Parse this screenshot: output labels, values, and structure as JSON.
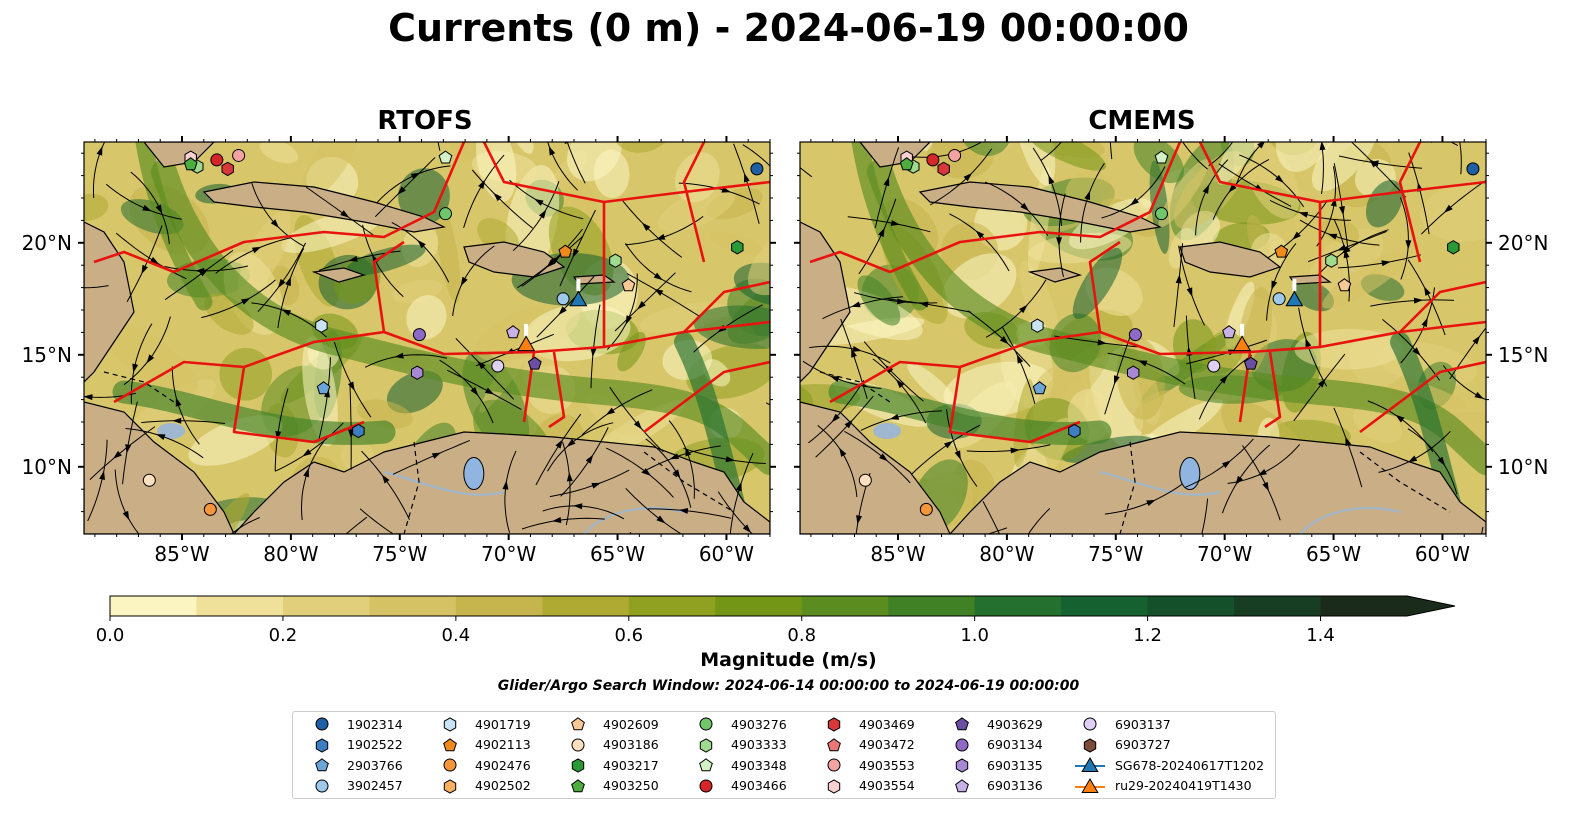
{
  "title": "Currents (0 m) - 2024-06-19 00:00:00",
  "panels": [
    {
      "title": "RTOFS"
    },
    {
      "title": "CMEMS"
    }
  ],
  "axes": {
    "lon_labels": [
      "85°W",
      "80°W",
      "75°W",
      "70°W",
      "65°W",
      "60°W"
    ],
    "lat_labels": [
      "20°N",
      "15°N",
      "10°N"
    ]
  },
  "colorbar": {
    "label": "Magnitude (m/s)",
    "ticks": [
      "0.0",
      "0.2",
      "0.4",
      "0.6",
      "0.8",
      "1.0",
      "1.2",
      "1.4"
    ],
    "bins": [
      0.0,
      0.1,
      0.2,
      0.3,
      0.4,
      0.5,
      0.6,
      0.7,
      0.8,
      0.9,
      1.0,
      1.1,
      1.2,
      1.3,
      1.4,
      1.5
    ],
    "colors": [
      "#fbf5c2",
      "#efe19a",
      "#e2cf7c",
      "#d5c265",
      "#c6b54c",
      "#aeaa32",
      "#90a020",
      "#749616",
      "#5b8c20",
      "#418126",
      "#24702f",
      "#15612f",
      "#14512a",
      "#173d23",
      "#1b2b1b"
    ],
    "extend": "max"
  },
  "search_window": "Glider/Argo Search Window: 2024-06-14 00:00:00 to 2024-06-19 00:00:00",
  "legend": [
    {
      "label": "1902314",
      "marker": "circle",
      "color": "#1f5fa3"
    },
    {
      "label": "1902522",
      "marker": "hexagon",
      "color": "#3d7ec0"
    },
    {
      "label": "2903766",
      "marker": "pentagon",
      "color": "#6ca6d9"
    },
    {
      "label": "3902457",
      "marker": "circle",
      "color": "#9ec9ea"
    },
    {
      "label": "4901719",
      "marker": "hexagon",
      "color": "#c9e3f5"
    },
    {
      "label": "4902113",
      "marker": "pentagon",
      "color": "#f08a1e"
    },
    {
      "label": "4902476",
      "marker": "circle",
      "color": "#f5963a"
    },
    {
      "label": "4902502",
      "marker": "hexagon",
      "color": "#f9b060"
    },
    {
      "label": "4902609",
      "marker": "pentagon",
      "color": "#f8c896"
    },
    {
      "label": "4903186",
      "marker": "circle",
      "color": "#fde0c0"
    },
    {
      "label": "4903217",
      "marker": "hexagon",
      "color": "#2a9a36"
    },
    {
      "label": "4903250",
      "marker": "pentagon",
      "color": "#4cae3c"
    },
    {
      "label": "4903276",
      "marker": "circle",
      "color": "#72c66a"
    },
    {
      "label": "4903333",
      "marker": "hexagon",
      "color": "#9edb8e"
    },
    {
      "label": "4903348",
      "marker": "pentagon",
      "color": "#d3f1c6"
    },
    {
      "label": "4903466",
      "marker": "circle",
      "color": "#d62728"
    },
    {
      "label": "4903469",
      "marker": "hexagon",
      "color": "#d8383a"
    },
    {
      "label": "4903472",
      "marker": "pentagon",
      "color": "#ea7777"
    },
    {
      "label": "4903553",
      "marker": "circle",
      "color": "#f4a3a3"
    },
    {
      "label": "4903554",
      "marker": "hexagon",
      "color": "#fbd0d0"
    },
    {
      "label": "4903629",
      "marker": "pentagon",
      "color": "#6a4fa3"
    },
    {
      "label": "6903134",
      "marker": "circle",
      "color": "#8f69c6"
    },
    {
      "label": "6903135",
      "marker": "hexagon",
      "color": "#a888d4"
    },
    {
      "label": "6903136",
      "marker": "pentagon",
      "color": "#c7b1e6"
    },
    {
      "label": "6903137",
      "marker": "circle",
      "color": "#ddd0f2"
    },
    {
      "label": "6903727",
      "marker": "hexagon",
      "color": "#7b4a3a"
    },
    {
      "label": "SG678-20240617T1202",
      "marker": "triangle-line",
      "color": "#1f77b4"
    },
    {
      "label": "ru29-20240419T1430",
      "marker": "triangle-line",
      "color": "#ff7f0e"
    }
  ],
  "map_markers": [
    {
      "id": "1902314",
      "lon": -58.6,
      "lat": 23.3
    },
    {
      "id": "4903276",
      "lon": -72.9,
      "lat": 21.3
    },
    {
      "id": "4903348",
      "lon": -72.9,
      "lat": 23.8
    },
    {
      "id": "4903466",
      "lon": -83.4,
      "lat": 23.7
    },
    {
      "id": "4903469",
      "lon": -82.9,
      "lat": 23.3
    },
    {
      "id": "4903553",
      "lon": -82.4,
      "lat": 23.9
    },
    {
      "id": "4903554",
      "lon": -84.6,
      "lat": 23.8
    },
    {
      "id": "4903333",
      "lon": -84.3,
      "lat": 23.4
    },
    {
      "id": "4903250",
      "lon": -84.6,
      "lat": 23.5
    },
    {
      "id": "4902113",
      "lon": -67.4,
      "lat": 19.6
    },
    {
      "id": "4903217",
      "lon": -59.5,
      "lat": 19.8
    },
    {
      "id": "4903333",
      "lon": -65.1,
      "lat": 19.2
    },
    {
      "id": "4902609",
      "lon": -64.5,
      "lat": 18.1
    },
    {
      "id": "3902457",
      "lon": -67.5,
      "lat": 17.5
    },
    {
      "id": "4901719",
      "lon": -78.6,
      "lat": 16.3
    },
    {
      "id": "6903134",
      "lon": -74.1,
      "lat": 15.9
    },
    {
      "id": "6903136",
      "lon": -69.8,
      "lat": 16.0
    },
    {
      "id": "6903137",
      "lon": -70.5,
      "lat": 14.5
    },
    {
      "id": "4903629",
      "lon": -68.8,
      "lat": 14.6
    },
    {
      "id": "6903135",
      "lon": -74.2,
      "lat": 14.2
    },
    {
      "id": "2903766",
      "lon": -78.5,
      "lat": 13.5
    },
    {
      "id": "1902522",
      "lon": -76.9,
      "lat": 11.6
    },
    {
      "id": "4903186",
      "lon": -86.5,
      "lat": 9.4
    },
    {
      "id": "4902476",
      "lon": -83.7,
      "lat": 8.1
    },
    {
      "id": "SG678-20240617T1202",
      "lon": -66.8,
      "lat": 17.4
    },
    {
      "id": "ru29-20240419T1430",
      "lon": -69.2,
      "lat": 15.4
    }
  ],
  "map_extent": {
    "lon": [
      -89.5,
      -58.0
    ],
    "lat": [
      7.0,
      24.5
    ]
  }
}
